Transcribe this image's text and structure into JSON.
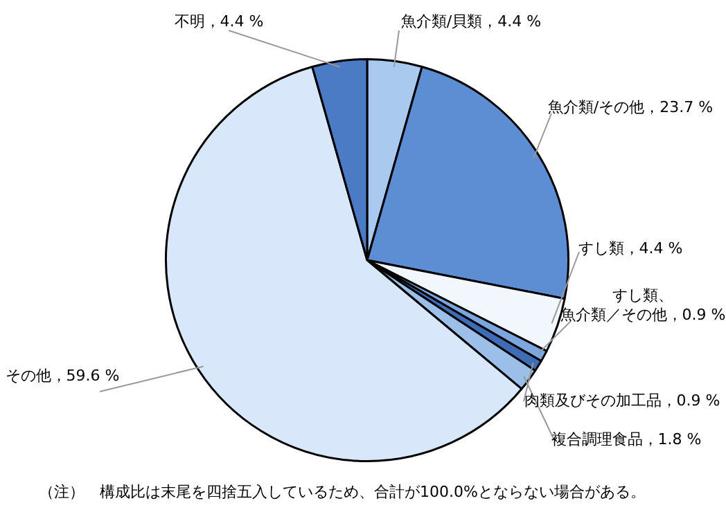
{
  "chart_data": {
    "type": "pie",
    "categories": [
      "魚介類/貝類",
      "魚介類/その他",
      "すし類",
      "すし類、魚介類／その他",
      "肉類及びその加工品",
      "複合調理食品",
      "その他",
      "不明"
    ],
    "values": [
      4.4,
      23.7,
      4.4,
      0.9,
      0.9,
      1.8,
      59.6,
      4.4
    ],
    "value_labels": [
      "4.4 %",
      "23.7 %",
      "4.4 %",
      "0.9 %",
      "0.9 %",
      "1.8 %",
      "59.6 %",
      "4.4 %"
    ],
    "colors": [
      "#a9c9ee",
      "#5d8dd2",
      "#f2f7fd",
      "#7ba7de",
      "#3e6db5",
      "#9cbfe9",
      "#d8e7f9",
      "#4b7bc5"
    ],
    "legend": false,
    "annotations": [
      "（注）　構成比は末尾を四捨五入しているため、合計が100.0%とならない場合がある。"
    ]
  }
}
